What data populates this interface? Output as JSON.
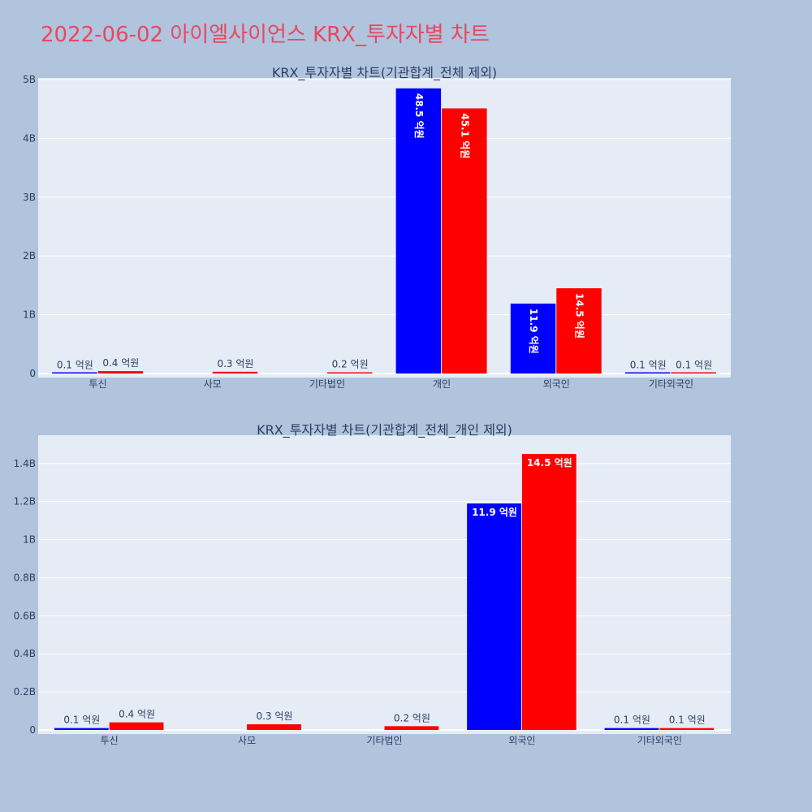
{
  "page_title": "2022-06-02 아이엘사이언스 KRX_투자자별 차트",
  "colors": {
    "background": "#b0c4de",
    "plot_bg": "#e5ecf6",
    "title": "#e8485f",
    "buy": "#0000ff",
    "sell": "#ff0000"
  },
  "chart_data": [
    {
      "type": "bar",
      "title": "KRX_투자자별 차트(기관합계_전체 제외)",
      "categories": [
        "투신",
        "사모",
        "기타법인",
        "개인",
        "외국인",
        "기타외국인"
      ],
      "ylim": [
        0,
        5000000000
      ],
      "yticks": [
        0,
        1000000000,
        2000000000,
        3000000000,
        4000000000,
        5000000000
      ],
      "ytick_labels": [
        "0",
        "1B",
        "2B",
        "3B",
        "4B",
        "5B"
      ],
      "grid": true,
      "text_orientation": "vertical",
      "series": [
        {
          "color": "#0000ff",
          "values": [
            10000000,
            null,
            null,
            4850000000,
            1190000000,
            10000000
          ],
          "labels": [
            "0.1 억원",
            "",
            "",
            "48.5 억원",
            "11.9 억원",
            "0.1 억원"
          ]
        },
        {
          "color": "#ff0000",
          "values": [
            40000000,
            30000000,
            20000000,
            4510000000,
            1450000000,
            10000000
          ],
          "labels": [
            "0.4 억원",
            "0.3 억원",
            "0.2 억원",
            "45.1 억원",
            "14.5 억원",
            "0.1 억원"
          ]
        }
      ]
    },
    {
      "type": "bar",
      "title": "KRX_투자자별 차트(기관합계_전체_개인 제외)",
      "categories": [
        "투신",
        "사모",
        "기타법인",
        "외국인",
        "기타외국인"
      ],
      "ylim": [
        0,
        1540000000
      ],
      "yticks": [
        0,
        200000000,
        400000000,
        600000000,
        800000000,
        1000000000,
        1200000000,
        1400000000
      ],
      "ytick_labels": [
        "0",
        "0.2B",
        "0.4B",
        "0.6B",
        "0.8B",
        "1B",
        "1.2B",
        "1.4B"
      ],
      "grid": true,
      "text_orientation": "horizontal",
      "series": [
        {
          "color": "#0000ff",
          "values": [
            10000000,
            null,
            null,
            1190000000,
            10000000
          ],
          "labels": [
            "0.1 억원",
            "",
            "",
            "11.9 억원",
            "0.1 억원"
          ]
        },
        {
          "color": "#ff0000",
          "values": [
            40000000,
            30000000,
            20000000,
            1450000000,
            10000000
          ],
          "labels": [
            "0.4 억원",
            "0.3 억원",
            "0.2 억원",
            "14.5 억원",
            "0.1 억원"
          ]
        }
      ]
    }
  ]
}
